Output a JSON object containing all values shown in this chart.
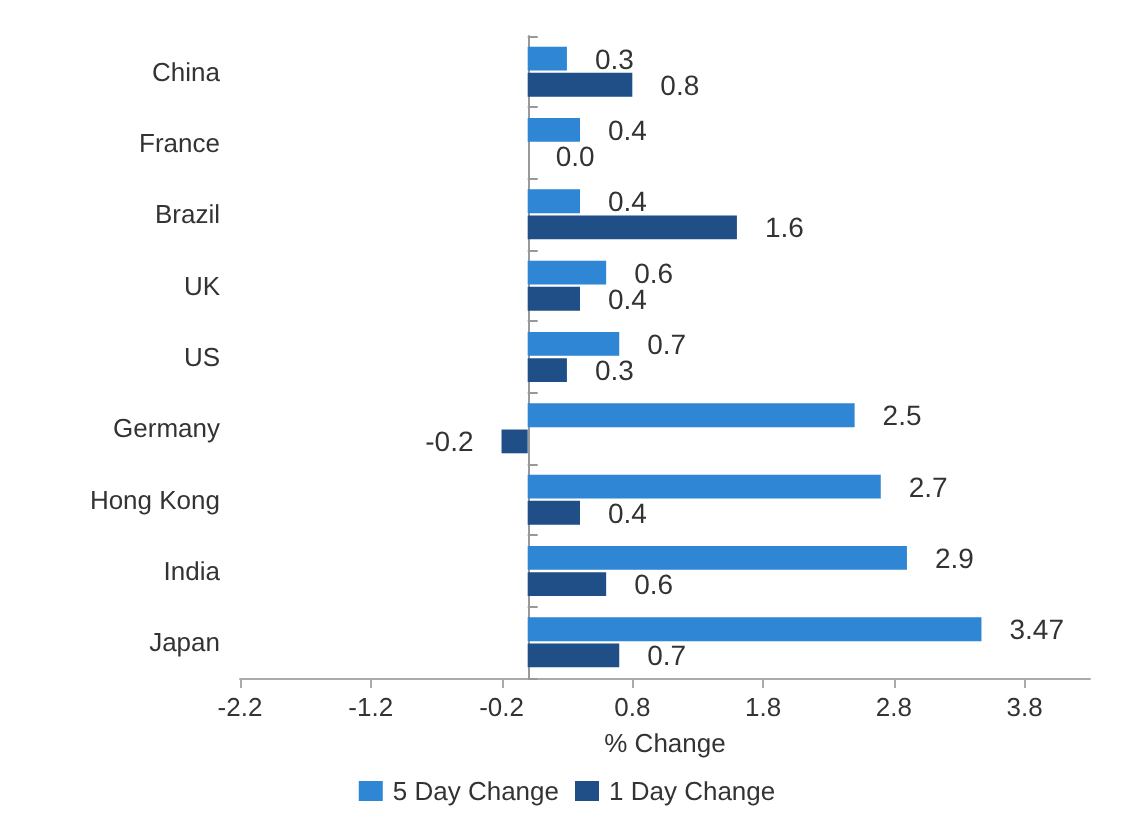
{
  "chart_data": {
    "type": "bar",
    "orientation": "horizontal",
    "xlabel": "% Change",
    "categories": [
      "China",
      "France",
      "Brazil",
      "UK",
      "US",
      "Germany",
      "Hong Kong",
      "India",
      "Japan"
    ],
    "series": [
      {
        "name": "5 Day Change",
        "color": "#2f86d4",
        "values": [
          0.3,
          0.4,
          0.4,
          0.6,
          0.7,
          2.5,
          2.7,
          2.9,
          3.47
        ],
        "value_labels": [
          "0.3",
          "0.4",
          "0.4",
          "0.6",
          "0.7",
          "2.5",
          "2.7",
          "2.9",
          "3.47"
        ]
      },
      {
        "name": "1 Day Change",
        "color": "#1f4f86",
        "values": [
          0.8,
          0.0,
          1.6,
          0.4,
          0.3,
          -0.2,
          0.4,
          0.6,
          0.7
        ],
        "value_labels": [
          "0.8",
          "0.0",
          "1.6",
          "0.4",
          "0.3",
          "-0.2",
          "0.4",
          "0.6",
          "0.7"
        ]
      }
    ],
    "xlim": [
      -2.2,
      4.3
    ],
    "xticks": [
      -2.2,
      -1.2,
      -0.2,
      0.8,
      1.8,
      2.8,
      3.8
    ],
    "grid": false,
    "legend": "bottom"
  }
}
